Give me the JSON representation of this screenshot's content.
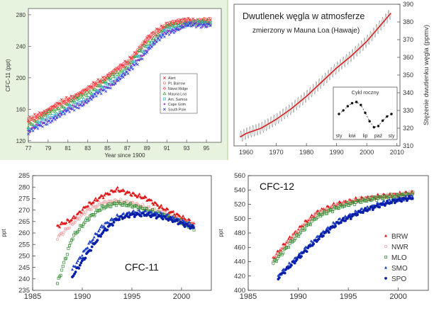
{
  "panels": {
    "p1": {
      "background": "#e8f3df"
    },
    "p2": {
      "background": "#ffffff",
      "curve_color": "#d62020",
      "seasonal_color": "#999999"
    }
  },
  "chart_data": [
    {
      "type": "scatter",
      "ylabel": "CFC-11 (ppt)",
      "xlabel": "Year since 1900",
      "xlim": [
        77,
        96.5
      ],
      "ylim": [
        118,
        288
      ],
      "xticks": [
        "77",
        "79",
        "81",
        "83",
        "85",
        "87",
        "89",
        "91",
        "93",
        "95"
      ],
      "yticks": [
        "120",
        "160",
        "200",
        "240",
        "280"
      ],
      "legend": [
        "Alert",
        "Pt. Barrow",
        "Niwot Ridge",
        "Mauna Loa",
        "Am. Samoa",
        "Cape Grim",
        "South Pole"
      ],
      "legend_position": "right",
      "colors": [
        "#e0202a",
        "#f07070",
        "#ff4040",
        "#30a030",
        "#30b0d0",
        "#a040c0",
        "#3040e0"
      ],
      "series": [
        {
          "name": "Alert",
          "x": [
            77,
            79,
            81,
            83,
            85,
            87,
            89,
            91,
            93,
            95.5
          ],
          "y": [
            146,
            160,
            173,
            186,
            203,
            220,
            250,
            269,
            273,
            273
          ]
        },
        {
          "name": "Pt. Barrow",
          "x": [
            77,
            79,
            81,
            83,
            85,
            87,
            89,
            91,
            93,
            95.5
          ],
          "y": [
            145,
            159,
            172,
            185,
            202,
            219,
            249,
            268,
            272,
            272
          ]
        },
        {
          "name": "Niwot Ridge",
          "x": [
            77,
            79,
            81,
            83,
            85,
            87,
            89,
            91,
            93,
            95.5
          ],
          "y": [
            144,
            158,
            171,
            184,
            201,
            218,
            247,
            267,
            272,
            272
          ]
        },
        {
          "name": "Mauna Loa",
          "x": [
            77,
            79,
            81,
            83,
            85,
            87,
            89,
            91,
            93,
            95.5
          ],
          "y": [
            140,
            154,
            167,
            180,
            197,
            214,
            243,
            264,
            270,
            270
          ]
        },
        {
          "name": "Am. Samoa",
          "x": [
            77,
            79,
            81,
            83,
            85,
            87,
            89,
            91,
            93,
            95.5
          ],
          "y": [
            134,
            148,
            161,
            174,
            191,
            209,
            238,
            260,
            268,
            269
          ]
        },
        {
          "name": "Cape Grim",
          "x": [
            77,
            79,
            81,
            83,
            85,
            87,
            89,
            91,
            93,
            95.5
          ],
          "y": [
            132,
            146,
            159,
            172,
            189,
            207,
            236,
            258,
            267,
            268
          ]
        },
        {
          "name": "South Pole",
          "x": [
            77,
            79,
            81,
            83,
            85,
            87,
            89,
            91,
            93,
            95.5
          ],
          "y": [
            130,
            144,
            157,
            170,
            187,
            205,
            234,
            257,
            266,
            268
          ]
        }
      ]
    },
    {
      "type": "line",
      "title": "Dwutlenek węgla w atmosferze",
      "subtitle": "zmierzony w Mauna Loa (Hawaje)",
      "ylabel": "Stężenie dwutlenku węgla (ppmv)",
      "xlim": [
        1956,
        2011
      ],
      "ylim": [
        310,
        390
      ],
      "xticks": [
        "1960",
        "1970",
        "1980",
        "1990",
        "2000",
        "2010"
      ],
      "yticks": [
        "310",
        "320",
        "330",
        "340",
        "350",
        "360",
        "370",
        "380",
        "390"
      ],
      "series": [
        {
          "name": "",
          "x": [
            1958,
            1960,
            1965,
            1970,
            1975,
            1980,
            1985,
            1990,
            1995,
            2000,
            2005,
            2008
          ],
          "y": [
            315,
            317,
            320,
            325,
            331,
            338,
            346,
            354,
            361,
            369,
            379,
            385
          ]
        }
      ],
      "inset": {
        "title": "Cykl roczny",
        "xticks": [
          "sty",
          "kwi",
          "lip",
          "paź",
          "sty"
        ],
        "x": [
          0,
          1,
          2,
          3,
          4,
          5,
          6,
          7,
          8,
          9,
          10,
          11,
          12
        ],
        "y": [
          0.0,
          0.6,
          1.3,
          1.8,
          2.0,
          1.5,
          0.2,
          -1.2,
          -2.2,
          -2.0,
          -1.1,
          -0.4,
          0.0
        ]
      }
    },
    {
      "type": "scatter",
      "title": "CFC-11",
      "ylabel": "ppt",
      "xlim": [
        1985,
        2003
      ],
      "ylim": [
        235,
        285
      ],
      "xticks": [
        "1985",
        "1990",
        "1995",
        "2000"
      ],
      "yticks": [
        "235",
        "240",
        "245",
        "250",
        "255",
        "260",
        "265",
        "270",
        "275",
        "280",
        "285"
      ],
      "series": [
        {
          "name": "BRW",
          "x": [
            1987.5,
            1989,
            1990.5,
            1992,
            1993.5,
            1995,
            1996.5,
            1998,
            1999.5,
            2001.3
          ],
          "y": [
            263,
            266,
            272,
            276,
            279,
            277,
            275,
            271,
            268,
            264
          ]
        },
        {
          "name": "NWR",
          "x": [
            1987.5,
            1989,
            1990.5,
            1992,
            1993.5,
            1995,
            1996.5,
            1998,
            1999.5,
            2001.3
          ],
          "y": [
            258,
            264,
            270,
            273,
            274,
            273,
            271,
            269,
            266,
            263
          ]
        },
        {
          "name": "MLO",
          "x": [
            1987.5,
            1989,
            1990.5,
            1992,
            1993.5,
            1995,
            1996.5,
            1998,
            1999.5,
            2001.3
          ],
          "y": [
            238,
            258,
            266,
            271,
            273,
            272,
            270,
            268,
            266,
            262
          ]
        },
        {
          "name": "SMO",
          "x": [
            1989,
            1990.5,
            1992,
            1993.5,
            1995,
            1996.5,
            1998,
            1999.5,
            2001.3
          ],
          "y": [
            244,
            254,
            263,
            267,
            269,
            269,
            268,
            266,
            263
          ]
        },
        {
          "name": "SPO",
          "x": [
            1989,
            1990.5,
            1992,
            1993.5,
            1995,
            1996.5,
            1998,
            1999.5,
            2001.3
          ],
          "y": [
            241,
            251,
            260,
            266,
            268,
            268,
            267,
            265,
            262
          ]
        }
      ]
    },
    {
      "type": "scatter",
      "title": "CFC-12",
      "ylabel": "ppt",
      "xlim": [
        1985,
        2003
      ],
      "ylim": [
        400,
        560
      ],
      "xticks": [
        "1985",
        "1990",
        "1995",
        "2000"
      ],
      "yticks": [
        "400",
        "420",
        "440",
        "460",
        "480",
        "500",
        "520",
        "540",
        "560"
      ],
      "legend": [
        "BRW",
        "NWR",
        "MLO",
        "SMO",
        "SPO"
      ],
      "legend_position": "bottom-right",
      "colors": [
        "#e01818",
        "#f0a0a0",
        "#2e8b2e",
        "#1e40c8",
        "#0a1fa8"
      ],
      "series": [
        {
          "name": "BRW",
          "x": [
            1987.5,
            1989,
            1990.5,
            1992,
            1994,
            1996,
            1998,
            2000,
            2001.5
          ],
          "y": [
            445,
            470,
            492,
            510,
            521,
            527,
            531,
            534,
            536
          ]
        },
        {
          "name": "NWR",
          "x": [
            1987.5,
            1989,
            1990.5,
            1992,
            1994,
            1996,
            1998,
            2000,
            2001.5
          ],
          "y": [
            443,
            468,
            490,
            508,
            519,
            526,
            530,
            533,
            535
          ]
        },
        {
          "name": "MLO",
          "x": [
            1987.5,
            1989,
            1990.5,
            1992,
            1994,
            1996,
            1998,
            2000,
            2001.5
          ],
          "y": [
            438,
            462,
            485,
            504,
            516,
            524,
            529,
            532,
            534
          ]
        },
        {
          "name": "SMO",
          "x": [
            1988,
            1989.5,
            1991,
            1992.5,
            1994,
            1996,
            1998,
            2000,
            2001.5
          ],
          "y": [
            420,
            441,
            462,
            481,
            497,
            510,
            520,
            527,
            530
          ]
        },
        {
          "name": "SPO",
          "x": [
            1988,
            1989.5,
            1991,
            1992.5,
            1994,
            1996,
            1998,
            2000,
            2001.5
          ],
          "y": [
            418,
            438,
            459,
            478,
            494,
            508,
            518,
            526,
            529
          ]
        }
      ]
    }
  ]
}
